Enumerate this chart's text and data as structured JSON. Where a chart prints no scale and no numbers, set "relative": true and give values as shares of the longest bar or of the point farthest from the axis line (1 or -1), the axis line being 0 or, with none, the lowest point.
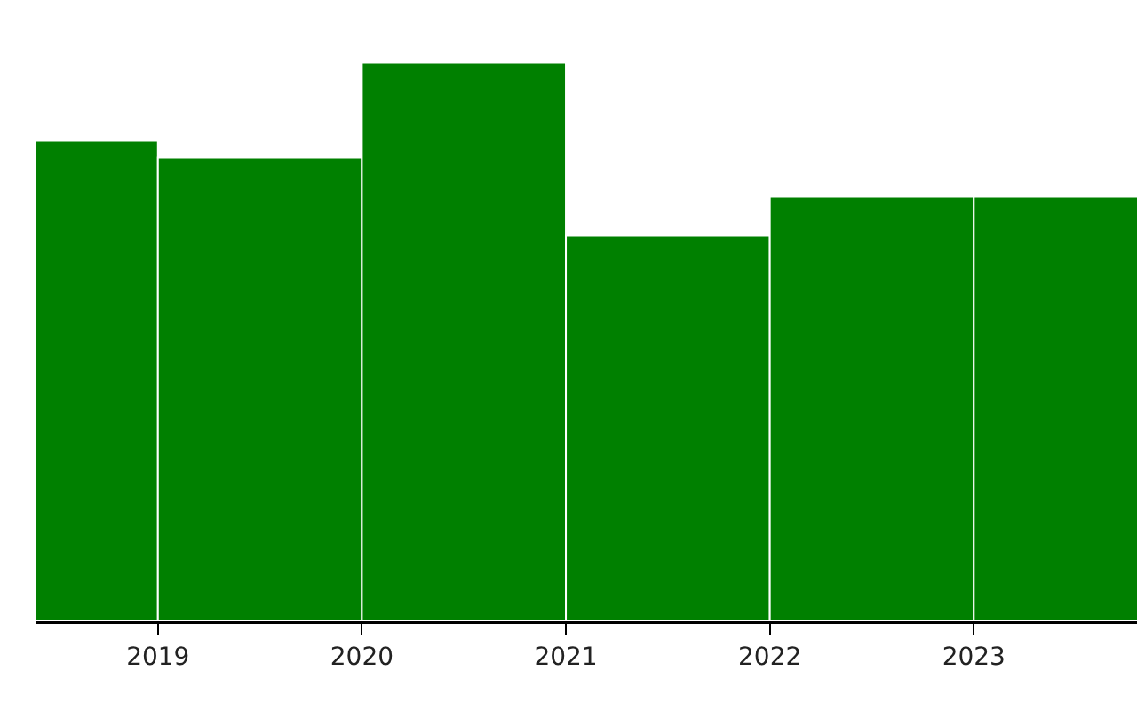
{
  "chart_data": {
    "type": "bar",
    "relative": true,
    "x": [
      2018.5,
      2019.5,
      2020.5,
      2021.5,
      2022.5,
      2023.5
    ],
    "values": [
      0.86,
      0.83,
      1,
      0.69,
      0.76,
      0.76
    ],
    "color": "#008000",
    "xlim": [
      2018.4,
      2023.8
    ],
    "xticks": [
      2019,
      2020,
      2021,
      2022,
      2023
    ],
    "grid": false,
    "legend": false
  }
}
